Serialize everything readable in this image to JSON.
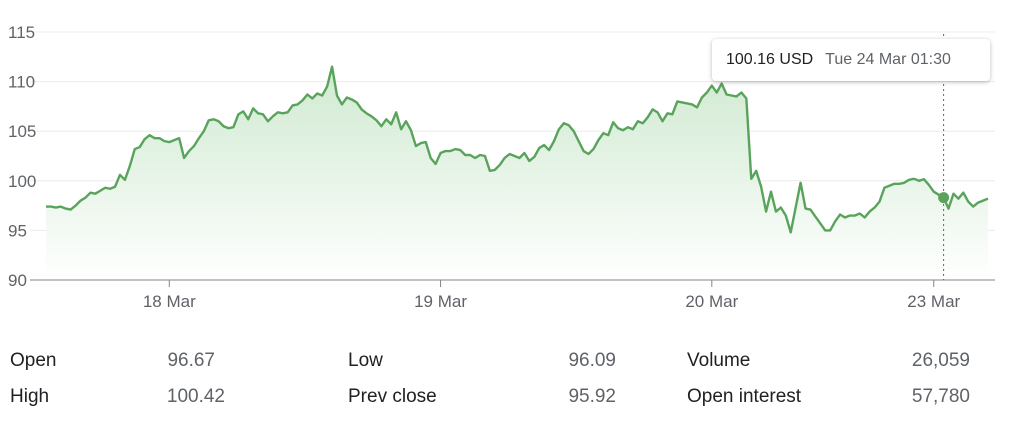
{
  "chart_data": {
    "type": "area",
    "ylim": [
      90,
      115
    ],
    "y_ticks": [
      90,
      95,
      100,
      105,
      110,
      115
    ],
    "x_ticks": [
      "18 Mar",
      "19 Mar",
      "20 Mar",
      "23 Mar"
    ],
    "x_tick_index": [
      25,
      80,
      135,
      180
    ],
    "line_color": "#4caf50",
    "fill_color": "#e8f5e9",
    "grid": true,
    "series": [
      {
        "values": [
          97.4,
          97.4,
          97.3,
          97.4,
          97.2,
          97.1,
          97.5,
          98,
          98.3,
          98.8,
          98.7,
          99,
          99.3,
          99.2,
          99.4,
          100.6,
          100.1,
          101.5,
          103.2,
          103.4,
          104.2,
          104.6,
          104.3,
          104.3,
          104.0,
          103.9,
          104.1,
          104.3,
          102.3,
          103.0,
          103.5,
          104.3,
          105.0,
          106.1,
          106.2,
          106.0,
          105.5,
          105.3,
          105.4,
          106.7,
          107.0,
          106.2,
          107.3,
          106.8,
          106.7,
          106.0,
          106.5,
          106.9,
          106.8,
          106.9,
          107.6,
          107.7,
          108.1,
          108.7,
          108.3,
          108.8,
          108.6,
          109.5,
          111.5,
          108.6,
          107.7,
          108.4,
          108.2,
          107.9,
          107.2,
          106.8,
          106.5,
          106.1,
          105.5,
          106.2,
          105.7,
          106.9,
          105.2,
          106.0,
          105.1,
          103.5,
          103.8,
          103.9,
          102.3,
          101.7,
          102.8,
          103.0,
          103.0,
          103.2,
          103.1,
          102.6,
          102.6,
          102.3,
          102.6,
          102.5,
          101.0,
          101.1,
          101.6,
          102.3,
          102.7,
          102.5,
          102.3,
          102.8,
          102.0,
          102.4,
          103.3,
          103.6,
          103.1,
          104.0,
          105.2,
          105.8,
          105.6,
          105.0,
          104.0,
          103.0,
          102.7,
          103.2,
          104.1,
          104.8,
          104.6,
          105.9,
          105.3,
          105.1,
          105.4,
          105.2,
          106.0,
          105.8,
          106.4,
          107.2,
          106.9,
          106.0,
          106.8,
          106.7,
          108.0,
          107.9,
          107.8,
          107.7,
          107.4,
          108.4,
          108.9,
          109.6,
          108.9,
          109.8,
          108.7,
          108.6,
          108.5,
          108.9,
          108.3,
          100.2,
          101.0,
          99.4,
          96.9,
          98.9,
          96.9,
          97.3,
          96.5,
          94.8,
          97.3,
          99.8,
          97.2,
          97.1,
          96.4,
          95.7,
          95.0,
          95.0,
          95.9,
          96.6,
          96.3,
          96.5,
          96.5,
          96.7,
          96.3,
          96.9,
          97.3,
          97.9,
          99.3,
          99.5,
          99.7,
          99.7,
          99.8,
          100.1,
          100.2,
          100.0,
          100.16,
          99.6,
          98.9,
          98.6,
          98.3,
          97.2,
          98.7,
          98.2,
          98.8,
          97.9,
          97.4,
          97.8,
          98.0,
          98.2
        ]
      }
    ],
    "hover_index": 182
  },
  "tooltip": {
    "price": "100.16 USD",
    "time": "Tue 24 Mar 01:30"
  },
  "stats": [
    {
      "label": "Open",
      "value": "96.67"
    },
    {
      "label": "High",
      "value": "100.42"
    },
    {
      "label": "Low",
      "value": "96.09"
    },
    {
      "label": "Prev close",
      "value": "95.92"
    },
    {
      "label": "Volume",
      "value": "26,059"
    },
    {
      "label": "Open interest",
      "value": "57,780"
    }
  ]
}
